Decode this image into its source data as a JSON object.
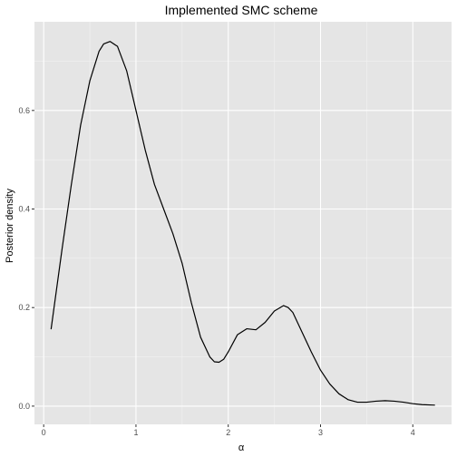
{
  "chart_data": {
    "type": "line",
    "title": "Implemented SMC scheme",
    "xlabel": "α",
    "ylabel": "Posterior density",
    "xlim": [
      -0.1,
      4.42
    ],
    "ylim": [
      -0.037,
      0.78
    ],
    "x_ticks": [
      0,
      1,
      2,
      3,
      4
    ],
    "x_tick_labels": [
      "0",
      "1",
      "2",
      "3",
      "4"
    ],
    "y_ticks": [
      0.0,
      0.2,
      0.4,
      0.6
    ],
    "y_tick_labels": [
      "0.0",
      "0.2",
      "0.4",
      "0.6"
    ],
    "x_minor_ticks": [
      0.5,
      1.5,
      2.5,
      3.5
    ],
    "y_minor_ticks": [
      0.1,
      0.3,
      0.5,
      0.7
    ],
    "grid": true,
    "legend": "none",
    "colors": {
      "panel_background": "#e5e5e5",
      "grid_major": "#ffffff",
      "grid_minor": "#f2f2f2",
      "line": "#000000",
      "tick_label": "#4d4d4d"
    },
    "series": [
      {
        "x": [
          0.08,
          0.2,
          0.3,
          0.4,
          0.5,
          0.6,
          0.65,
          0.72,
          0.8,
          0.9,
          1.0,
          1.1,
          1.2,
          1.3,
          1.4,
          1.5,
          1.6,
          1.7,
          1.8,
          1.85,
          1.9,
          1.95,
          2.0,
          2.1,
          2.2,
          2.3,
          2.4,
          2.5,
          2.6,
          2.65,
          2.7,
          2.8,
          2.9,
          3.0,
          3.1,
          3.2,
          3.3,
          3.4,
          3.5,
          3.6,
          3.7,
          3.8,
          3.9,
          4.0,
          4.1,
          4.24
        ],
        "y": [
          0.156,
          0.32,
          0.45,
          0.57,
          0.66,
          0.72,
          0.735,
          0.74,
          0.73,
          0.68,
          0.6,
          0.52,
          0.45,
          0.4,
          0.35,
          0.29,
          0.21,
          0.14,
          0.1,
          0.09,
          0.089,
          0.095,
          0.11,
          0.145,
          0.157,
          0.155,
          0.17,
          0.193,
          0.204,
          0.2,
          0.19,
          0.15,
          0.11,
          0.073,
          0.045,
          0.025,
          0.013,
          0.008,
          0.008,
          0.01,
          0.011,
          0.01,
          0.008,
          0.005,
          0.003,
          0.002
        ]
      }
    ]
  }
}
